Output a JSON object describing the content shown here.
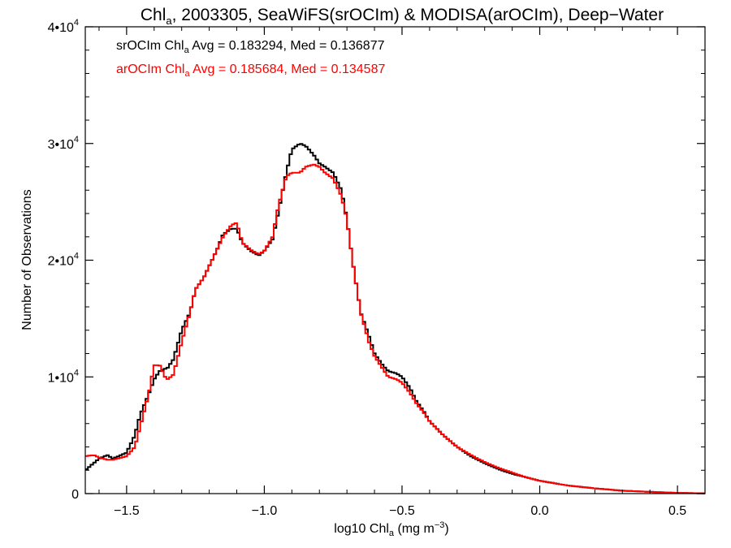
{
  "chart_data": {
    "type": "line",
    "title_parts": {
      "pre": "Chl",
      "sub": "a",
      "post": ", 2003305, SeaWiFS(srOCIm) & MODISA(arOCIm), Deep−Water"
    },
    "xlabel_parts": {
      "pre": "log10 Chl",
      "sub": "a",
      "post": " (mg m",
      "sup": "−3",
      "end": ")"
    },
    "ylabel": "Number of Observations",
    "xlim": [
      -1.65,
      0.6
    ],
    "ylim": [
      0,
      40000
    ],
    "xticks": [
      {
        "value": -1.5,
        "label": "−1.5"
      },
      {
        "value": -1.0,
        "label": "−1.0"
      },
      {
        "value": -0.5,
        "label": "−0.5"
      },
      {
        "value": 0.0,
        "label": "0.0"
      },
      {
        "value": 0.5,
        "label": "0.5"
      }
    ],
    "yticks": [
      {
        "value": 0,
        "mant": "0",
        "exp": ""
      },
      {
        "value": 10000,
        "mant": "1•10",
        "exp": "4"
      },
      {
        "value": 20000,
        "mant": "2•10",
        "exp": "4"
      },
      {
        "value": 30000,
        "mant": "3•10",
        "exp": "4"
      },
      {
        "value": 40000,
        "mant": "4•10",
        "exp": "4"
      }
    ],
    "annotations": [
      {
        "color": "#000000",
        "pre": "srOCIm Chl",
        "sub": "a",
        "post": " Avg = 0.183294, Med = 0.136877"
      },
      {
        "color": "#ff0000",
        "pre": "arOCIm Chl",
        "sub": "a",
        "post": " Avg = 0.185684, Med = 0.134587"
      }
    ],
    "series": [
      {
        "color": "#000000",
        "x": [
          -1.65,
          -1.6,
          -1.57,
          -1.55,
          -1.5,
          -1.47,
          -1.45,
          -1.42,
          -1.4,
          -1.38,
          -1.35,
          -1.33,
          -1.3,
          -1.27,
          -1.25,
          -1.22,
          -1.2,
          -1.17,
          -1.15,
          -1.12,
          -1.1,
          -1.08,
          -1.05,
          -1.02,
          -1.0,
          -0.97,
          -0.95,
          -0.92,
          -0.9,
          -0.87,
          -0.85,
          -0.82,
          -0.8,
          -0.78,
          -0.75,
          -0.72,
          -0.7,
          -0.68,
          -0.65,
          -0.62,
          -0.6,
          -0.57,
          -0.55,
          -0.52,
          -0.5,
          -0.47,
          -0.45,
          -0.42,
          -0.4,
          -0.35,
          -0.3,
          -0.25,
          -0.2,
          -0.15,
          -0.1,
          -0.05,
          0.0,
          0.1,
          0.2,
          0.3,
          0.4,
          0.5,
          0.6
        ],
        "y": [
          2000,
          3000,
          3300,
          3000,
          3500,
          5000,
          6800,
          8500,
          9800,
          10500,
          10800,
          11500,
          14000,
          15500,
          17500,
          18500,
          19500,
          21000,
          22200,
          22700,
          22700,
          21500,
          20800,
          20400,
          20800,
          21800,
          24000,
          27500,
          29500,
          30000,
          29800,
          29000,
          28300,
          28000,
          27500,
          26000,
          23500,
          20000,
          15500,
          13500,
          12000,
          11000,
          10500,
          10300,
          10000,
          9000,
          8000,
          7000,
          6200,
          5000,
          4000,
          3200,
          2600,
          2100,
          1700,
          1400,
          1100,
          700,
          450,
          250,
          150,
          60,
          20
        ]
      },
      {
        "color": "#ff0000",
        "x": [
          -1.65,
          -1.62,
          -1.6,
          -1.57,
          -1.55,
          -1.5,
          -1.47,
          -1.45,
          -1.42,
          -1.4,
          -1.38,
          -1.36,
          -1.35,
          -1.33,
          -1.3,
          -1.27,
          -1.25,
          -1.22,
          -1.2,
          -1.17,
          -1.15,
          -1.12,
          -1.1,
          -1.08,
          -1.05,
          -1.02,
          -1.0,
          -0.97,
          -0.95,
          -0.92,
          -0.9,
          -0.87,
          -0.85,
          -0.82,
          -0.8,
          -0.78,
          -0.75,
          -0.72,
          -0.7,
          -0.68,
          -0.65,
          -0.62,
          -0.6,
          -0.57,
          -0.55,
          -0.52,
          -0.5,
          -0.47,
          -0.45,
          -0.42,
          -0.4,
          -0.35,
          -0.3,
          -0.25,
          -0.2,
          -0.15,
          -0.1,
          -0.05,
          0.0,
          0.1,
          0.2,
          0.3,
          0.4,
          0.5,
          0.6
        ],
        "y": [
          3200,
          3300,
          3100,
          2900,
          2900,
          3200,
          4000,
          5800,
          8500,
          11000,
          11000,
          10000,
          9800,
          10200,
          13000,
          15500,
          17500,
          18500,
          19500,
          21000,
          22000,
          23000,
          23200,
          21500,
          20900,
          20500,
          20800,
          22000,
          24500,
          27200,
          27500,
          27500,
          28000,
          28200,
          28000,
          27500,
          27000,
          25500,
          23500,
          20000,
          15500,
          13000,
          11800,
          10700,
          10000,
          9800,
          9500,
          8600,
          7800,
          6900,
          6200,
          5000,
          4000,
          3300,
          2700,
          2200,
          1800,
          1400,
          1100,
          700,
          450,
          250,
          150,
          60,
          20
        ]
      }
    ]
  }
}
